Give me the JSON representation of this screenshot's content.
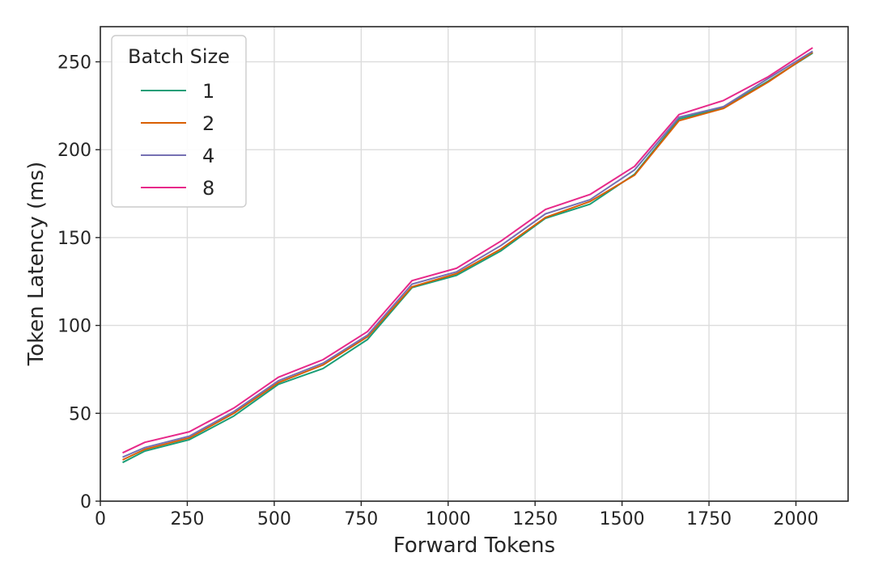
{
  "chart_data": {
    "type": "line",
    "title": "",
    "xlabel": "Forward Tokens",
    "ylabel": "Token Latency (ms)",
    "xlim": [
      0,
      2150
    ],
    "ylim": [
      0,
      270
    ],
    "xticks": [
      0,
      250,
      500,
      750,
      1000,
      1250,
      1500,
      1750,
      2000
    ],
    "yticks": [
      0,
      50,
      100,
      150,
      200,
      250
    ],
    "grid": true,
    "legend": {
      "title": "Batch Size",
      "placement": "top-left"
    },
    "x": [
      64,
      128,
      256,
      384,
      512,
      640,
      768,
      896,
      1024,
      1152,
      1280,
      1408,
      1536,
      1664,
      1792,
      1920,
      2048
    ],
    "series": [
      {
        "name": "1",
        "color": "#1b9e77",
        "values": [
          22,
          28.5,
          35,
          48.5,
          66.5,
          75.5,
          92,
          121.5,
          128.5,
          142.5,
          161,
          169,
          186,
          217.5,
          224,
          239,
          255
        ]
      },
      {
        "name": "2",
        "color": "#d95f02",
        "values": [
          23.5,
          29.5,
          36,
          50,
          67.5,
          77.5,
          93.5,
          122,
          129.5,
          143.5,
          161.5,
          170.5,
          185.5,
          216.5,
          223.5,
          238.5,
          255.5
        ]
      },
      {
        "name": "4",
        "color": "#7570b3",
        "values": [
          25,
          30.5,
          37,
          51,
          68.5,
          78.5,
          94.5,
          123.5,
          130.5,
          145.5,
          163.5,
          171.5,
          188.5,
          218.5,
          224.5,
          240.5,
          256
        ]
      },
      {
        "name": "8",
        "color": "#e7298a",
        "values": [
          27.5,
          33.5,
          39.5,
          53,
          70.5,
          80.5,
          96.5,
          125.5,
          132.5,
          148,
          166,
          174.5,
          190.5,
          220,
          228,
          241.5,
          258
        ]
      }
    ]
  }
}
